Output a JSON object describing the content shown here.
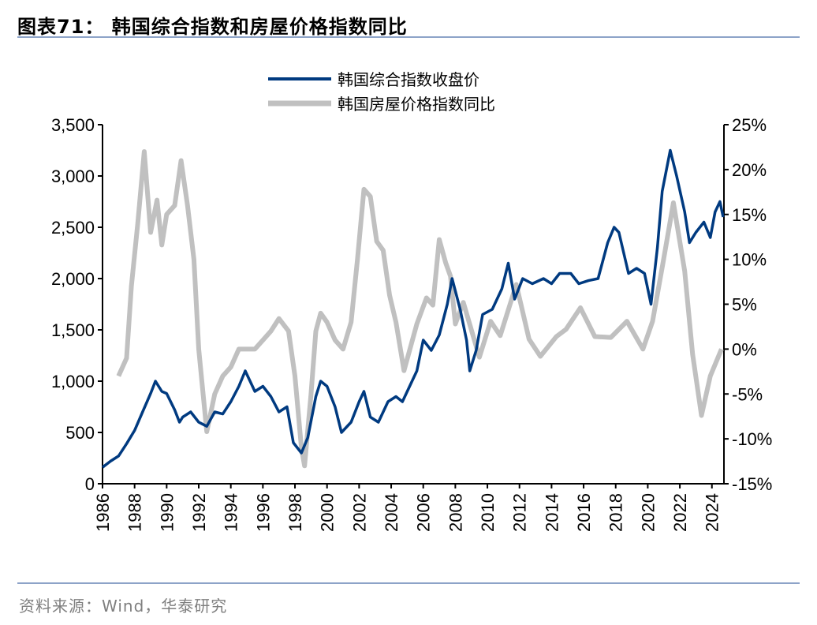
{
  "header": {
    "title": "图表71：  韩国综合指数和房屋价格指数同比"
  },
  "footer": {
    "source": "资料来源：Wind，华泰研究"
  },
  "chart_data": {
    "type": "line",
    "title": "",
    "legend_position": "top-center",
    "grid": false,
    "x_range": [
      1986,
      2024.75
    ],
    "x_ticks": [
      "1986",
      "1988",
      "1990",
      "1992",
      "1994",
      "1996",
      "1998",
      "2000",
      "2002",
      "2004",
      "2006",
      "2008",
      "2010",
      "2012",
      "2014",
      "2016",
      "2018",
      "2020",
      "2022",
      "2024"
    ],
    "y_left": {
      "range": [
        0,
        3500
      ],
      "ticks": [
        "0",
        "500",
        "1,000",
        "1,500",
        "2,000",
        "2,500",
        "3,000",
        "3,500"
      ]
    },
    "y_right": {
      "range": [
        -15,
        25
      ],
      "ticks": [
        "-15%",
        "-10%",
        "-5%",
        "0%",
        "5%",
        "10%",
        "15%",
        "20%",
        "25%"
      ]
    },
    "series": [
      {
        "name": "韩国综合指数收盘价",
        "axis": "left",
        "color": "#003a80",
        "points": [
          [
            1986.0,
            160
          ],
          [
            1986.5,
            220
          ],
          [
            1987.0,
            270
          ],
          [
            1987.5,
            390
          ],
          [
            1988.0,
            520
          ],
          [
            1988.5,
            700
          ],
          [
            1989.0,
            880
          ],
          [
            1989.3,
            1000
          ],
          [
            1989.7,
            900
          ],
          [
            1990.0,
            880
          ],
          [
            1990.5,
            720
          ],
          [
            1990.8,
            600
          ],
          [
            1991.0,
            650
          ],
          [
            1991.5,
            700
          ],
          [
            1992.0,
            600
          ],
          [
            1992.5,
            560
          ],
          [
            1993.0,
            700
          ],
          [
            1993.5,
            680
          ],
          [
            1994.0,
            800
          ],
          [
            1994.5,
            950
          ],
          [
            1994.9,
            1100
          ],
          [
            1995.5,
            900
          ],
          [
            1996.0,
            950
          ],
          [
            1996.5,
            850
          ],
          [
            1997.0,
            700
          ],
          [
            1997.5,
            750
          ],
          [
            1997.9,
            400
          ],
          [
            1998.4,
            300
          ],
          [
            1998.8,
            450
          ],
          [
            1999.3,
            850
          ],
          [
            1999.6,
            1000
          ],
          [
            2000.0,
            950
          ],
          [
            2000.5,
            750
          ],
          [
            2000.9,
            500
          ],
          [
            2001.5,
            600
          ],
          [
            2002.0,
            800
          ],
          [
            2002.3,
            900
          ],
          [
            2002.7,
            650
          ],
          [
            2003.2,
            600
          ],
          [
            2003.8,
            800
          ],
          [
            2004.3,
            850
          ],
          [
            2004.7,
            800
          ],
          [
            2005.0,
            900
          ],
          [
            2005.6,
            1100
          ],
          [
            2006.0,
            1400
          ],
          [
            2006.5,
            1300
          ],
          [
            2007.0,
            1450
          ],
          [
            2007.5,
            1750
          ],
          [
            2007.8,
            2000
          ],
          [
            2008.3,
            1700
          ],
          [
            2008.7,
            1400
          ],
          [
            2008.9,
            1100
          ],
          [
            2009.3,
            1300
          ],
          [
            2009.7,
            1650
          ],
          [
            2010.3,
            1700
          ],
          [
            2010.9,
            1900
          ],
          [
            2011.3,
            2150
          ],
          [
            2011.7,
            1800
          ],
          [
            2012.2,
            2000
          ],
          [
            2012.8,
            1950
          ],
          [
            2013.5,
            2000
          ],
          [
            2014.0,
            1950
          ],
          [
            2014.5,
            2050
          ],
          [
            2015.2,
            2050
          ],
          [
            2015.7,
            1950
          ],
          [
            2016.3,
            1980
          ],
          [
            2016.9,
            2000
          ],
          [
            2017.5,
            2350
          ],
          [
            2017.9,
            2500
          ],
          [
            2018.2,
            2450
          ],
          [
            2018.8,
            2050
          ],
          [
            2019.3,
            2100
          ],
          [
            2019.8,
            2050
          ],
          [
            2020.2,
            1750
          ],
          [
            2020.6,
            2300
          ],
          [
            2020.9,
            2850
          ],
          [
            2021.4,
            3250
          ],
          [
            2021.8,
            3000
          ],
          [
            2022.3,
            2650
          ],
          [
            2022.6,
            2350
          ],
          [
            2023.0,
            2450
          ],
          [
            2023.5,
            2550
          ],
          [
            2023.9,
            2400
          ],
          [
            2024.2,
            2650
          ],
          [
            2024.5,
            2750
          ],
          [
            2024.7,
            2600
          ]
        ]
      },
      {
        "name": "韩国房屋价格指数同比",
        "axis": "right",
        "color": "#c0c0c0",
        "points": [
          [
            1987.0,
            -3
          ],
          [
            1987.5,
            -1
          ],
          [
            1987.8,
            7
          ],
          [
            1988.2,
            14
          ],
          [
            1988.6,
            22
          ],
          [
            1989.0,
            13
          ],
          [
            1989.4,
            16.6
          ],
          [
            1989.7,
            11.6
          ],
          [
            1990.0,
            15
          ],
          [
            1990.5,
            16
          ],
          [
            1990.9,
            21
          ],
          [
            1991.3,
            16
          ],
          [
            1991.7,
            10
          ],
          [
            1992.0,
            0
          ],
          [
            1992.5,
            -9.2
          ],
          [
            1993.0,
            -5
          ],
          [
            1993.5,
            -3
          ],
          [
            1994.0,
            -2
          ],
          [
            1994.5,
            0
          ],
          [
            1995.0,
            0
          ],
          [
            1995.5,
            0
          ],
          [
            1996.0,
            1
          ],
          [
            1996.5,
            2
          ],
          [
            1997.0,
            3.4
          ],
          [
            1997.6,
            2
          ],
          [
            1998.0,
            -3
          ],
          [
            1998.4,
            -11
          ],
          [
            1998.6,
            -13
          ],
          [
            1999.0,
            -5
          ],
          [
            1999.3,
            2
          ],
          [
            1999.6,
            4
          ],
          [
            2000.0,
            3
          ],
          [
            2000.5,
            1
          ],
          [
            2001.0,
            0
          ],
          [
            2001.5,
            3
          ],
          [
            2001.9,
            10
          ],
          [
            2002.3,
            17.8
          ],
          [
            2002.7,
            17
          ],
          [
            2003.1,
            12
          ],
          [
            2003.5,
            11
          ],
          [
            2003.9,
            6
          ],
          [
            2004.3,
            3
          ],
          [
            2004.8,
            -2.4
          ],
          [
            2005.6,
            2.8
          ],
          [
            2006.2,
            5.7
          ],
          [
            2006.6,
            4.9
          ],
          [
            2007.0,
            12.2
          ],
          [
            2007.4,
            9.6
          ],
          [
            2007.7,
            8.1
          ],
          [
            2008.0,
            2.8
          ],
          [
            2008.5,
            5.2
          ],
          [
            2009.5,
            -0.9
          ],
          [
            2010.2,
            3.1
          ],
          [
            2010.8,
            1.5
          ],
          [
            2011.8,
            7.2
          ],
          [
            2012.6,
            1.1
          ],
          [
            2013.3,
            -0.8
          ],
          [
            2014.3,
            1.4
          ],
          [
            2014.9,
            2.2
          ],
          [
            2015.8,
            4.6
          ],
          [
            2016.7,
            1.4
          ],
          [
            2017.7,
            1.3
          ],
          [
            2018.7,
            3.1
          ],
          [
            2019.7,
            0
          ],
          [
            2020.3,
            3.1
          ],
          [
            2020.95,
            9.6
          ],
          [
            2021.6,
            16.3
          ],
          [
            2022.3,
            8.7
          ],
          [
            2022.8,
            -0.6
          ],
          [
            2023.35,
            -7.4
          ],
          [
            2023.9,
            -3
          ],
          [
            2024.6,
            0
          ]
        ]
      }
    ]
  }
}
